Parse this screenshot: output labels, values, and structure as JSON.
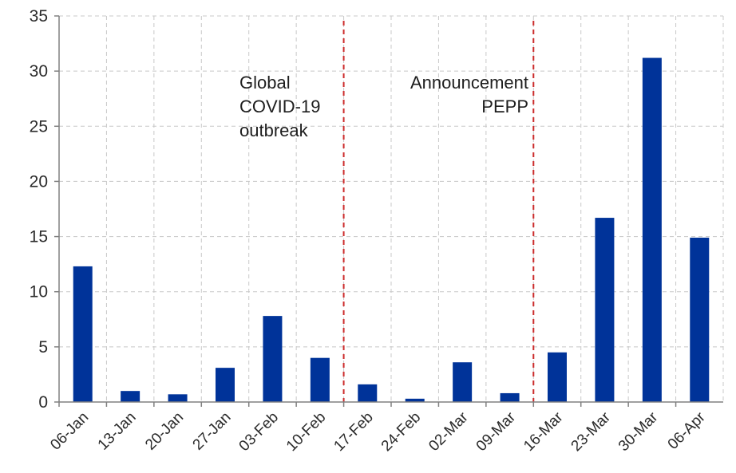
{
  "chart_data": {
    "type": "bar",
    "categories": [
      "06-Jan",
      "13-Jan",
      "20-Jan",
      "27-Jan",
      "03-Feb",
      "10-Feb",
      "17-Feb",
      "24-Feb",
      "02-Mar",
      "09-Mar",
      "16-Mar",
      "23-Mar",
      "30-Mar",
      "06-Apr"
    ],
    "values": [
      12.3,
      1.0,
      0.7,
      3.1,
      7.8,
      4.0,
      1.6,
      0.3,
      3.6,
      0.8,
      4.5,
      16.7,
      31.2,
      14.9
    ],
    "ylim": [
      0,
      35
    ],
    "yticks": [
      "0",
      "5",
      "10",
      "15",
      "20",
      "25",
      "30",
      "35"
    ],
    "grid": true,
    "bar_color": "#003399",
    "marker_color": "#cc2b2b",
    "annotations": [
      {
        "lines": [
          "Global",
          "COVID-19",
          "outbreak"
        ],
        "marker_after": "10-Feb"
      },
      {
        "lines": [
          "Announcement",
          "PEPP"
        ],
        "marker_after": "09-Mar"
      }
    ]
  }
}
